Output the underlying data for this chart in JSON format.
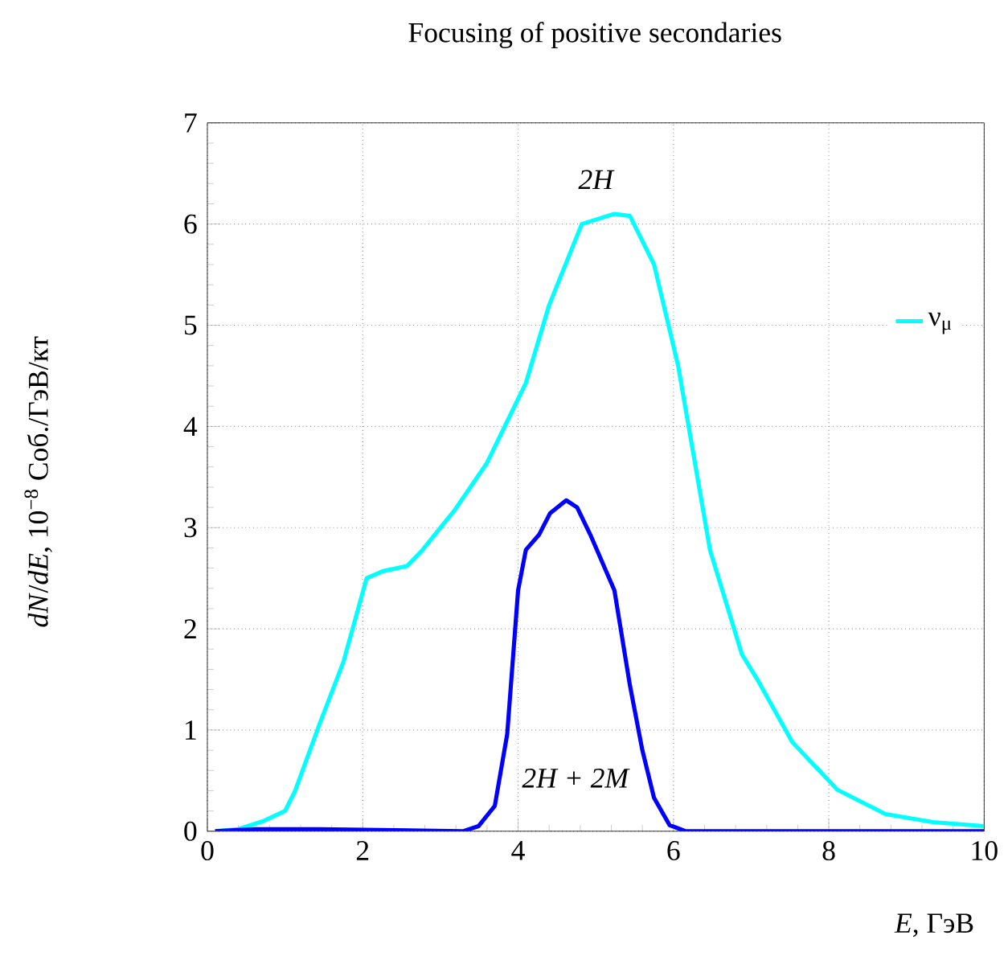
{
  "chart_data": {
    "type": "line",
    "title": "Focusing of positive secondaries",
    "xlabel": "*E*, ГэВ",
    "ylabel": "*dN*/*dE*, 10$^{−8}$ Соб./ГэВ/кт",
    "xlim": [
      0,
      10
    ],
    "ylim": [
      0,
      7
    ],
    "xticks": [
      0,
      2,
      4,
      6,
      8,
      10
    ],
    "yticks": [
      0,
      1,
      2,
      3,
      4,
      5,
      6,
      7
    ],
    "grid": true,
    "legend": "right",
    "line_style": "solid",
    "marker": "none",
    "series": [
      {
        "name": "ν$_{μ}$",
        "color": "#00ffff",
        "x": [
          0.1,
          0.4,
          0.72,
          1.0,
          1.13,
          1.44,
          1.75,
          2.05,
          2.26,
          2.57,
          2.77,
          3.18,
          3.6,
          4.1,
          4.4,
          4.82,
          5.24,
          5.44,
          5.75,
          6.06,
          6.47,
          6.88,
          7.08,
          7.53,
          8.11,
          8.73,
          9.34,
          10
        ],
        "values": [
          0,
          0.02,
          0.1,
          0.2,
          0.4,
          1.05,
          1.67,
          2.5,
          2.57,
          2.62,
          2.78,
          3.17,
          3.64,
          4.43,
          5.2,
          6.0,
          6.1,
          6.08,
          5.6,
          4.6,
          2.78,
          1.75,
          1.5,
          0.88,
          0.41,
          0.17,
          0.09,
          0.05
        ]
      },
      {
        "color": "#0000ff",
        "x": [
          0.1,
          0.6,
          1.44,
          3.29,
          3.49,
          3.7,
          3.86,
          4.0,
          4.1,
          4.27,
          4.41,
          4.62,
          4.76,
          4.93,
          5.24,
          5.44,
          5.6,
          5.75,
          5.95,
          6.16,
          10
        ],
        "values": [
          0,
          0.02,
          0.02,
          0,
          0.05,
          0.25,
          0.96,
          2.38,
          2.78,
          2.93,
          3.14,
          3.27,
          3.2,
          2.93,
          2.38,
          1.44,
          0.8,
          0.33,
          0.06,
          0,
          0
        ]
      }
    ],
    "annotations": [
      "2H",
      "2H + 2M"
    ]
  }
}
